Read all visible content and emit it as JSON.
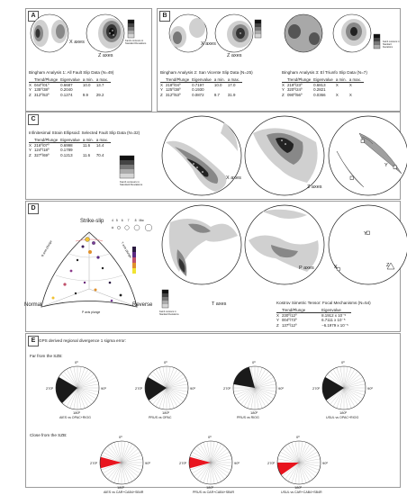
{
  "panels": {
    "a": "A",
    "b": "B",
    "c": "C",
    "d": "D",
    "e": "E"
  },
  "a": {
    "title": "Bingham Analysis 1: All Fault Slip Data (N=49)",
    "x_axes": "X axes",
    "z_axes": "Z axes",
    "legend_note": "Kamb contours in Standard Deviations",
    "head": [
      "",
      "Trend/Plunge",
      "Eigenvalue",
      "a min.",
      "a max."
    ],
    "rows": [
      [
        "X",
        "044º/01º",
        "0.6687",
        "10.0",
        "13.7"
      ],
      [
        "Y",
        "135º/38º",
        "0.2040",
        "",
        ""
      ],
      [
        "Z",
        "312º/53º",
        "0.1274",
        "9.9",
        "29.2"
      ]
    ]
  },
  "b": {
    "title2": "Bingham Analysis 2: San Vicente Slip Data (N=25)",
    "title3": "Bingham Analysis 3: El Triunfo Slip Data (N=7)",
    "x_axes": "X axes",
    "z_axes": "Z axes",
    "legend_note": "Kamb contours in Standard Deviations",
    "head2": [
      "",
      "Trend/Plunge",
      "Eigenvalue",
      "a min.",
      "a max."
    ],
    "rows2": [
      [
        "X",
        "218º/04º",
        "0.7197",
        "10.0",
        "17.0"
      ],
      [
        "Y",
        "125º/38º",
        "0.1930",
        "",
        ""
      ],
      [
        "Z",
        "312º/53º",
        "0.0872",
        "9.7",
        "31.9"
      ]
    ],
    "head3": [
      "",
      "Trend/Plunge",
      "Eigenvalue",
      "a min.",
      "a max."
    ],
    "rows3": [
      [
        "X",
        "219º/23º",
        "0.6813",
        "X",
        "X"
      ],
      [
        "Y",
        "320º/24º",
        "0.2821",
        "",
        ""
      ],
      [
        "Z",
        "090º/56º",
        "0.0366",
        "X",
        "X"
      ]
    ]
  },
  "c": {
    "title": "Infinitesimal Strain Ellipsoid: Selected Fault Slip Data (N=32)",
    "head": [
      "",
      "Trend/Plunge",
      "Eigenvalue",
      "a min.",
      "a max."
    ],
    "rows": [
      [
        "X",
        "216º/07º",
        "0.6998",
        "11.6",
        "14.4"
      ],
      [
        "Y",
        "124º/18º",
        "0.1789",
        "",
        ""
      ],
      [
        "Z",
        "327º/69º",
        "0.1213",
        "11.6",
        "70.4"
      ]
    ],
    "legend_note": "Kamb contours in Standard Deviations",
    "x_axes": "X axes",
    "z_axes": "Z axes",
    "y": "Y",
    "x": "X",
    "z": "Z"
  },
  "d": {
    "strike_slip": "Strike-slip",
    "normal": "Normal",
    "reverse": "Reverse",
    "b_axis": "B axis plunge",
    "t_axis": "T axis plunge",
    "p_axis": "P axis plunge",
    "mw": [
      "4",
      "5",
      "6",
      "7",
      "8",
      "Mw"
    ],
    "t_axes": "T axes",
    "p_axes": "P axes",
    "legend_note": "Kamb contours in Standard Deviations",
    "kostrov_title": "Kostrov Simetric Tensor: Focal Mechanisms (N=54)",
    "k_head": [
      "",
      "Trend/Plunge",
      "Eigenvalue"
    ],
    "k_rows": [
      [
        "X",
        "230º/12º",
        "8.1912 x 10⁻⁵"
      ],
      [
        "Y",
        "004º/73º",
        "6.7111 x 10⁻⁵"
      ],
      [
        "Z",
        "137º/12º",
        "−6.1979 x 10⁻⁵"
      ]
    ],
    "dx": "X",
    "dy": "Y",
    "dz": "Z"
  },
  "e": {
    "title": "GPS derived regional divergence 1 sigma error:",
    "far": "Far from the SZB:",
    "close": "Close from the SZB:",
    "deg": [
      "0º",
      "90º",
      "180º",
      "270º"
    ],
    "far_caps": [
      "AIES vs OPAC+RIOG",
      "PRUS vs OPAC",
      "PRUS vs RIOG",
      "USUL vs OPAC+RIOG"
    ],
    "close_caps": [
      "AIES vs CAR+CAB4+SB4R",
      "PRUS vs CAR+CAB4+SB4R",
      "USUL vs CAR+CAB4+SB4R"
    ]
  },
  "colors": {
    "wedge_far": "#1a1a1a",
    "wedge_close": "#e8141e"
  }
}
